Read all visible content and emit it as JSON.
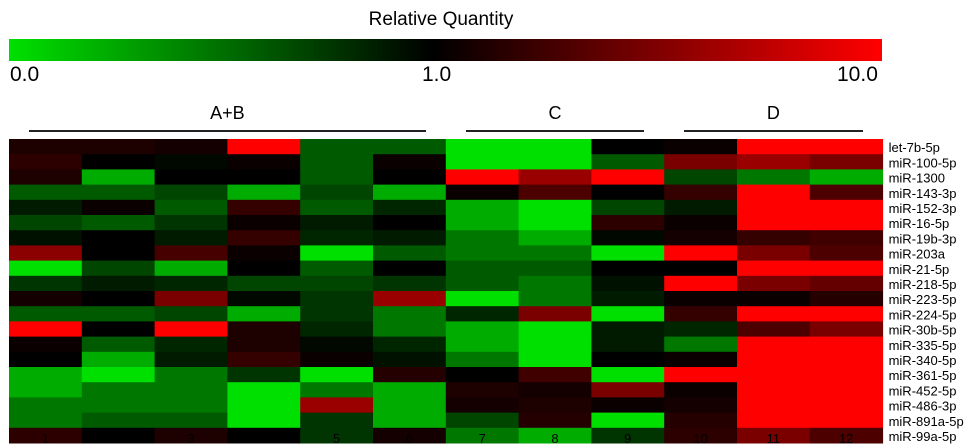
{
  "legend": {
    "title": "Relative Quantity",
    "min_label": "0.0",
    "mid_label": "1.0",
    "max_label": "10.0",
    "low_color": "#00e000",
    "mid_color": "#000000",
    "high_color": "#ff0000"
  },
  "groups": [
    {
      "label": "A+B",
      "columns": [
        1,
        6
      ]
    },
    {
      "label": "C",
      "columns": [
        7,
        9
      ]
    },
    {
      "label": "D",
      "columns": [
        10,
        12
      ]
    }
  ],
  "chart_data": {
    "type": "heatmap",
    "scale": "log",
    "value_range": [
      0.0,
      10.0
    ],
    "columns": [
      "1",
      "2",
      "3",
      "4",
      "5",
      "6",
      "7",
      "8",
      "9",
      "10",
      "11",
      "12"
    ],
    "rows": [
      "let-7b-5p",
      "miR-100-5p",
      "miR-1300",
      "miR-143-3p",
      "miR-152-3p",
      "miR-16-5p",
      "miR-19b-3p",
      "miR-203a",
      "miR-21-5p",
      "miR-218-5p",
      "miR-223-5p",
      "miR-224-5p",
      "miR-30b-5p",
      "miR-335-5p",
      "miR-340-5p",
      "miR-361-5p",
      "miR-452-5p",
      "miR-486-3p",
      "miR-891a-5p",
      "miR-99a-5p"
    ],
    "values": [
      [
        1.3,
        1.3,
        1.2,
        10.0,
        0.3,
        0.3,
        0.05,
        0.05,
        1.0,
        1.1,
        10.0,
        10.0
      ],
      [
        1.5,
        1.0,
        0.9,
        1.1,
        0.3,
        1.1,
        0.05,
        0.05,
        0.3,
        3.0,
        4.0,
        3.0
      ],
      [
        1.3,
        0.1,
        1.0,
        1.0,
        0.3,
        1.0,
        10.0,
        4.0,
        10.0,
        0.4,
        0.2,
        0.1
      ],
      [
        0.3,
        0.3,
        0.4,
        0.1,
        0.4,
        0.1,
        1.1,
        2.0,
        1.0,
        1.6,
        10.0,
        2.0
      ],
      [
        0.7,
        1.1,
        0.3,
        1.6,
        0.3,
        0.6,
        0.1,
        0.05,
        0.4,
        0.7,
        10.0,
        10.0
      ],
      [
        0.4,
        0.3,
        0.5,
        1.1,
        0.7,
        1.0,
        0.1,
        0.05,
        1.5,
        1.1,
        10.0,
        10.0
      ],
      [
        0.8,
        1.0,
        0.7,
        1.6,
        0.6,
        0.7,
        0.2,
        0.1,
        0.9,
        1.2,
        1.6,
        1.8
      ],
      [
        3.5,
        1.0,
        1.9,
        1.1,
        0.05,
        0.3,
        0.2,
        0.2,
        0.05,
        10.0,
        3.0,
        2.0
      ],
      [
        0.05,
        0.4,
        0.1,
        1.0,
        0.3,
        1.0,
        0.3,
        0.3,
        1.0,
        1.0,
        10.0,
        10.0
      ],
      [
        0.5,
        0.7,
        0.6,
        0.4,
        0.4,
        0.5,
        0.3,
        0.2,
        0.8,
        10.0,
        3.0,
        2.5
      ],
      [
        1.2,
        1.0,
        3.0,
        0.9,
        0.5,
        4.0,
        0.05,
        0.2,
        0.7,
        1.1,
        1.1,
        1.4
      ],
      [
        0.3,
        0.3,
        0.4,
        0.1,
        0.5,
        0.2,
        0.6,
        3.0,
        0.05,
        1.6,
        10.0,
        10.0
      ],
      [
        10.0,
        1.0,
        10.0,
        1.3,
        0.6,
        0.2,
        0.1,
        0.05,
        0.7,
        0.6,
        2.0,
        3.0
      ],
      [
        1.1,
        0.3,
        0.6,
        1.3,
        0.9,
        0.6,
        0.1,
        0.05,
        0.7,
        0.2,
        10.0,
        10.0
      ],
      [
        1.0,
        0.1,
        0.7,
        1.6,
        1.1,
        0.8,
        0.2,
        0.05,
        1.0,
        1.1,
        10.0,
        10.0
      ],
      [
        0.1,
        0.05,
        0.2,
        0.5,
        0.05,
        1.4,
        1.0,
        1.8,
        0.05,
        10.0,
        10.0,
        10.0
      ],
      [
        0.1,
        0.2,
        0.2,
        0.05,
        0.2,
        0.1,
        1.3,
        1.2,
        3.0,
        1.1,
        10.0,
        10.0
      ],
      [
        0.2,
        0.2,
        0.2,
        0.05,
        4.0,
        0.1,
        1.2,
        1.3,
        1.1,
        1.2,
        10.0,
        10.0
      ],
      [
        0.2,
        0.3,
        0.3,
        0.05,
        0.5,
        0.1,
        0.4,
        1.4,
        0.05,
        1.4,
        10.0,
        10.0
      ],
      [
        1.5,
        1.0,
        1.3,
        1.0,
        0.5,
        1.2,
        0.2,
        0.1,
        0.5,
        1.5,
        3.0,
        2.0
      ]
    ]
  }
}
